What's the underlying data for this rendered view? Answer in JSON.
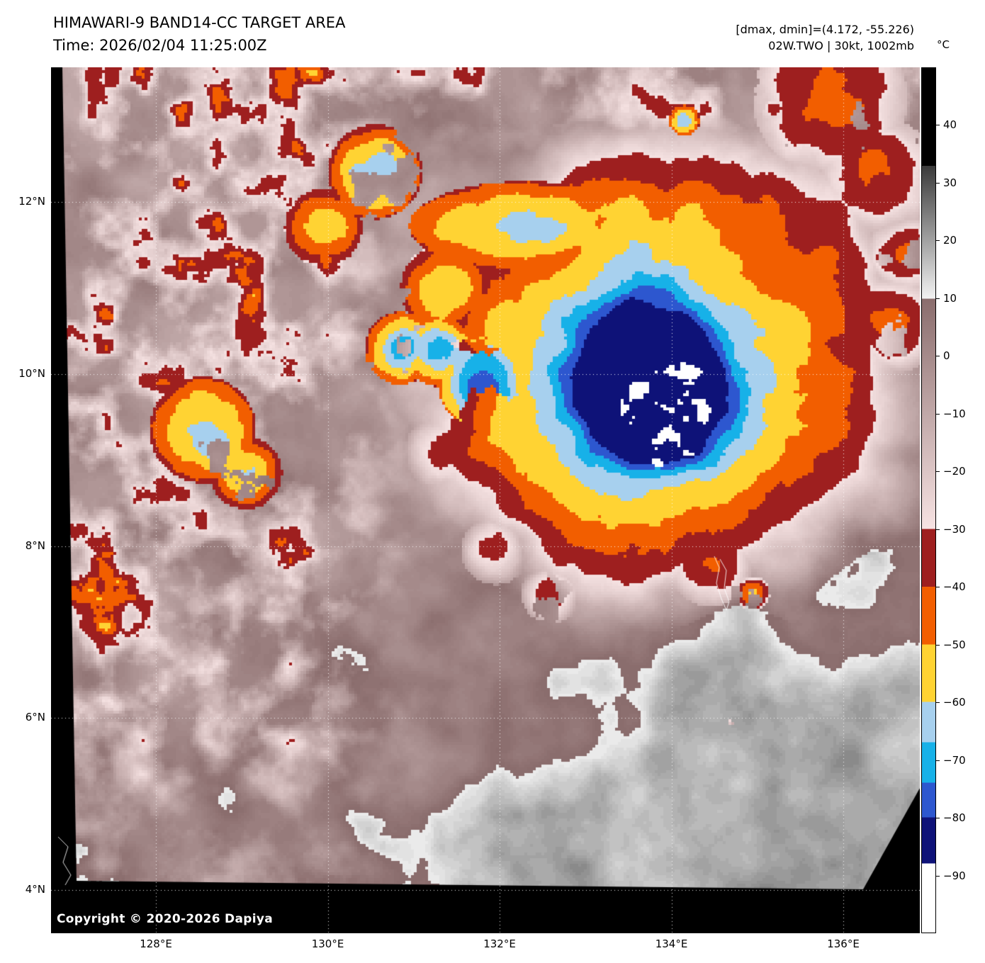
{
  "header": {
    "title": "HIMAWARI-9 BAND14-CC TARGET AREA",
    "time": "Time: 2026/02/04 11:25:00Z",
    "range_readout": "[dmax, dmin]=(4.172, -55.226)",
    "storm_readout": "02W.TWO | 30kt, 1002mb"
  },
  "map": {
    "copyright": "Copyright © 2020-2026 Dapiya",
    "background_color": "#000000",
    "grid_color": "#ffffff"
  },
  "axes": {
    "lat_ticks": [
      {
        "label": "12°N",
        "value": 12
      },
      {
        "label": "10°N",
        "value": 10
      },
      {
        "label": "8°N",
        "value": 8
      },
      {
        "label": "6°N",
        "value": 6
      },
      {
        "label": "4°N",
        "value": 4
      }
    ],
    "lon_ticks": [
      {
        "label": "128°E",
        "value": 128
      },
      {
        "label": "130°E",
        "value": 130
      },
      {
        "label": "132°E",
        "value": 132
      },
      {
        "label": "134°E",
        "value": 134
      },
      {
        "label": "136°E",
        "value": 136
      }
    ]
  },
  "colorbar": {
    "unit": "°C",
    "vmax": 50,
    "vmin": -100,
    "ticks": [
      {
        "label": "40",
        "value": 40
      },
      {
        "label": "30",
        "value": 30
      },
      {
        "label": "20",
        "value": 20
      },
      {
        "label": "10",
        "value": 10
      },
      {
        "label": "0",
        "value": 0
      },
      {
        "label": "−10",
        "value": -10
      },
      {
        "label": "−20",
        "value": -20
      },
      {
        "label": "−30",
        "value": -30
      },
      {
        "label": "−40",
        "value": -40
      },
      {
        "label": "−50",
        "value": -50
      },
      {
        "label": "−60",
        "value": -60
      },
      {
        "label": "−70",
        "value": -70
      },
      {
        "label": "−80",
        "value": -80
      },
      {
        "label": "−90",
        "value": -90
      }
    ],
    "segments": [
      {
        "from": 50,
        "to": 33,
        "c0": "#000000",
        "c1": "#000000"
      },
      {
        "from": 33,
        "to": 10,
        "c0": "#3a3a3a",
        "c1": "#f2f2f2"
      },
      {
        "from": 10,
        "to": -30,
        "c0": "#8a6d6d",
        "c1": "#f7e3e3"
      },
      {
        "from": -30,
        "to": -40,
        "c0": "#9e1f1f",
        "c1": "#9e1f1f"
      },
      {
        "from": -40,
        "to": -50,
        "c0": "#f25e00",
        "c1": "#f25e00"
      },
      {
        "from": -50,
        "to": -60,
        "c0": "#ffd333",
        "c1": "#ffd333"
      },
      {
        "from": -60,
        "to": -67,
        "c0": "#a7d0ee",
        "c1": "#a7d0ee"
      },
      {
        "from": -67,
        "to": -74,
        "c0": "#17b1e8",
        "c1": "#17b1e8"
      },
      {
        "from": -74,
        "to": -80,
        "c0": "#2d57cf",
        "c1": "#2d57cf"
      },
      {
        "from": -80,
        "to": -88,
        "c0": "#0e1278",
        "c1": "#0e1278"
      },
      {
        "from": -88,
        "to": -100,
        "c0": "#ffffff",
        "c1": "#ffffff"
      }
    ]
  }
}
